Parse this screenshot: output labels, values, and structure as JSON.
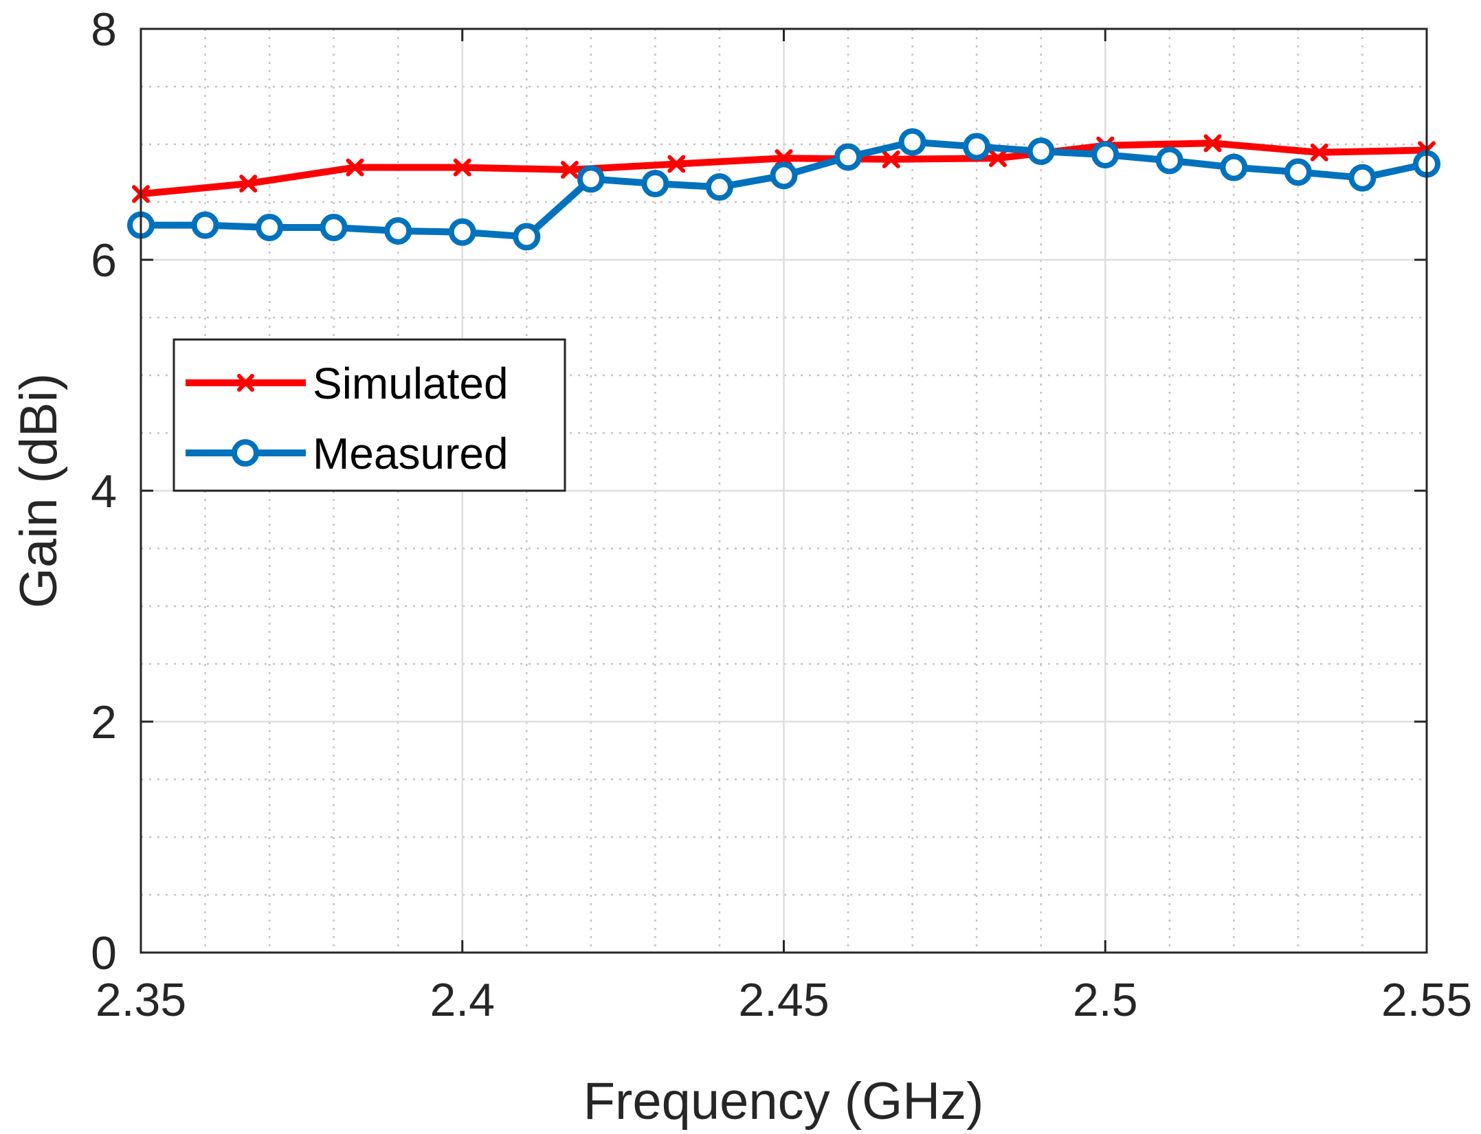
{
  "chart_data": {
    "type": "line",
    "title": "",
    "xlabel": "Frequency (GHz)",
    "ylabel": "Gain (dBi)",
    "xlim": [
      2.35,
      2.55
    ],
    "ylim": [
      0,
      8
    ],
    "x_ticks": [
      2.35,
      2.4,
      2.45,
      2.5,
      2.55
    ],
    "x_tick_labels": [
      "2.35",
      "2.4",
      "2.45",
      "2.5",
      "2.55"
    ],
    "y_ticks": [
      0,
      2,
      4,
      6,
      8
    ],
    "y_tick_labels": [
      "0",
      "2",
      "4",
      "6",
      "8"
    ],
    "grid": true,
    "minor_grid": true,
    "legend_position": "left-middle",
    "series": [
      {
        "name": "Simulated",
        "color": "#ff0000",
        "marker": "x",
        "x": [
          2.35,
          2.3667,
          2.3833,
          2.4,
          2.4167,
          2.4333,
          2.45,
          2.4667,
          2.4833,
          2.5,
          2.5167,
          2.5333,
          2.55
        ],
        "values": [
          6.57,
          6.66,
          6.8,
          6.8,
          6.78,
          6.83,
          6.88,
          6.87,
          6.88,
          6.99,
          7.01,
          6.93,
          6.95
        ]
      },
      {
        "name": "Measured",
        "color": "#0072bd",
        "marker": "o",
        "x": [
          2.35,
          2.36,
          2.37,
          2.38,
          2.39,
          2.4,
          2.41,
          2.42,
          2.43,
          2.44,
          2.45,
          2.46,
          2.47,
          2.48,
          2.49,
          2.5,
          2.51,
          2.52,
          2.53,
          2.54,
          2.55
        ],
        "values": [
          6.3,
          6.3,
          6.28,
          6.28,
          6.25,
          6.24,
          6.2,
          6.7,
          6.66,
          6.63,
          6.73,
          6.89,
          7.02,
          6.98,
          6.94,
          6.91,
          6.86,
          6.8,
          6.76,
          6.71,
          6.83
        ]
      }
    ]
  }
}
